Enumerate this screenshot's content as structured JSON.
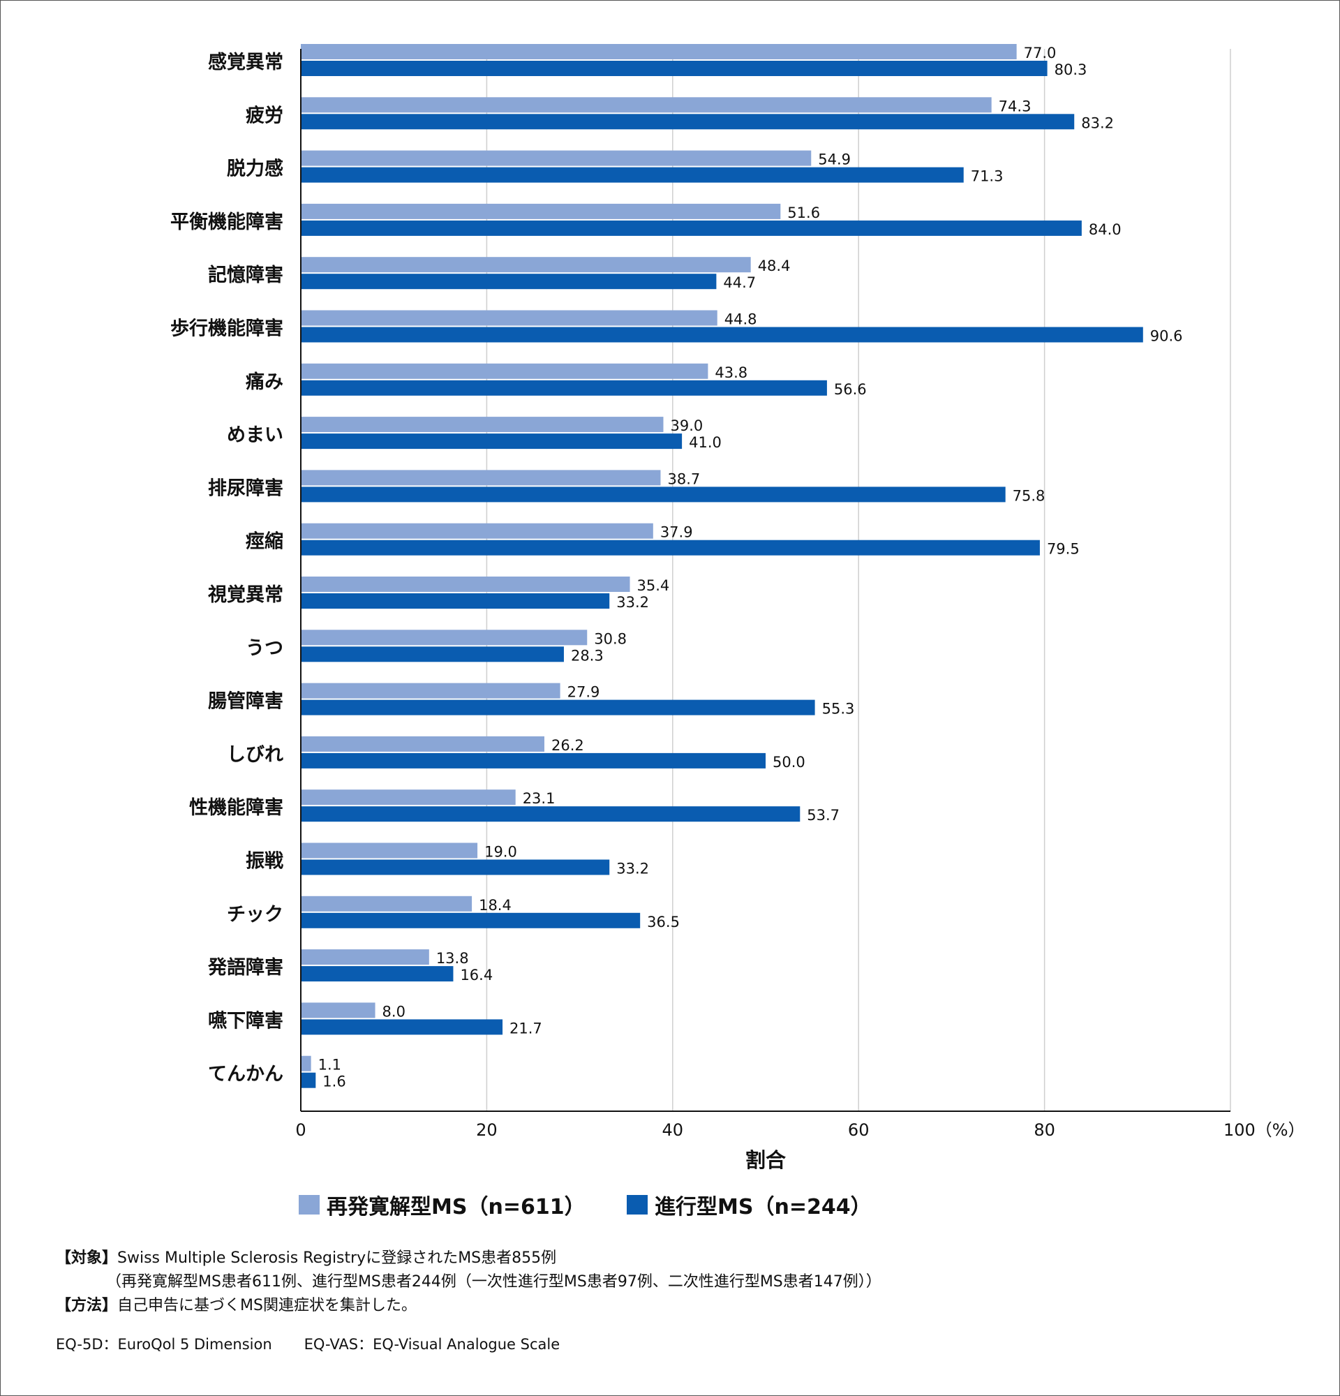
{
  "colors": {
    "series1": "#8aa6d6",
    "series2": "#0a5cb0",
    "grid": "#cfcfcf",
    "axis": "#111111"
  },
  "chart_data": {
    "type": "bar",
    "orientation": "horizontal",
    "categories": [
      "感覚異常",
      "疲労",
      "脱力感",
      "平衡機能障害",
      "記憶障害",
      "歩行機能障害",
      "痛み",
      "めまい",
      "排尿障害",
      "痙縮",
      "視覚異常",
      "うつ",
      "腸管障害",
      "しびれ",
      "性機能障害",
      "振戦",
      "チック",
      "発語障害",
      "嚥下障害",
      "てんかん"
    ],
    "series": [
      {
        "name": "再発寛解型MS（n=611）",
        "values": [
          77.0,
          74.3,
          54.9,
          51.6,
          48.4,
          44.8,
          43.8,
          39.0,
          38.7,
          37.9,
          35.4,
          30.8,
          27.9,
          26.2,
          23.1,
          19.0,
          18.4,
          13.8,
          8.0,
          1.1
        ]
      },
      {
        "name": "進行型MS（n=244）",
        "values": [
          80.3,
          83.2,
          71.3,
          84.0,
          44.7,
          90.6,
          56.6,
          41.0,
          75.8,
          79.5,
          33.2,
          28.3,
          55.3,
          50.0,
          53.7,
          33.2,
          36.5,
          16.4,
          21.7,
          1.6
        ]
      }
    ],
    "xlim": [
      0,
      100
    ],
    "xticks": [
      0,
      20,
      40,
      60,
      80,
      100
    ],
    "tick_labels": [
      "0",
      "20",
      "40",
      "60",
      "80",
      "100（%）"
    ],
    "xlabel": "割合",
    "grid": true,
    "legend_position": "bottom"
  },
  "legend": {
    "series1_label": "再発寛解型MS（n=611）",
    "series2_label": "進行型MS（n=244）"
  },
  "notes": {
    "target_label": "【対象】",
    "target_text": "Swiss Multiple Sclerosis Registryに登録されたMS患者855例",
    "target_detail": "（再発寛解型MS患者611例、進行型MS患者244例（一次性進行型MS患者97例、二次性進行型MS患者147例））",
    "method_label": "【方法】",
    "method_text": "自己申告に基づくMS関連症状を集計した。"
  },
  "abbreviations": {
    "eq5d": "EQ-5D：EuroQol 5 Dimension",
    "eqvas": "EQ-VAS：EQ-Visual Analogue Scale"
  }
}
